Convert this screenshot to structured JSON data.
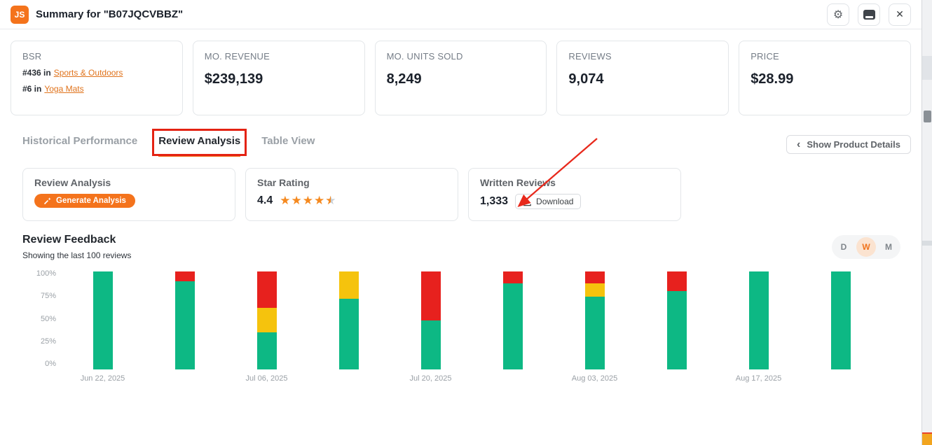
{
  "colors": {
    "brand_orange": "#f4731c",
    "annotation_red": "#e8291c",
    "bar_positive": "#0db884",
    "bar_neutral": "#f5c30d",
    "bar_negative": "#e7211e"
  },
  "header": {
    "logo_text": "JS",
    "title": "Summary for \"B07JQCVBBZ\""
  },
  "icons": {
    "settings": "⚙",
    "close": "✕",
    "chevron_left": "‹"
  },
  "stats": [
    {
      "label": "BSR",
      "lines": [
        {
          "prefix": "#436 in",
          "link": "Sports & Outdoors"
        },
        {
          "prefix": "#6 in",
          "link": "Yoga Mats"
        }
      ]
    },
    {
      "label": "MO. REVENUE",
      "value": "$239,139"
    },
    {
      "label": "MO. UNITS SOLD",
      "value": "8,249"
    },
    {
      "label": "REVIEWS",
      "value": "9,074"
    },
    {
      "label": "PRICE",
      "value": "$28.99"
    }
  ],
  "tabs": {
    "items": [
      {
        "label": "Historical Performance"
      },
      {
        "label": "Review Analysis"
      },
      {
        "label": "Table View"
      }
    ],
    "active_tab": "Review Analysis",
    "show_details_label": "Show Product Details"
  },
  "review_analysis_card": {
    "title": "Review Analysis",
    "generate_button_label": "Generate Analysis"
  },
  "star_rating_card": {
    "title": "Star Rating",
    "value": "4.4",
    "stars": 4.5
  },
  "written_reviews_card": {
    "title": "Written Reviews",
    "count": "1,333",
    "download_label": "Download"
  },
  "feedback": {
    "title": "Review Feedback",
    "subtitle": "Showing the last 100 reviews",
    "period_options": [
      "D",
      "W",
      "M"
    ],
    "active_period": "W"
  },
  "chart_data": {
    "type": "bar",
    "stacked": true,
    "bar_count": 10,
    "ylim": [
      0,
      100
    ],
    "y_tick_labels": [
      "100%",
      "75%",
      "50%",
      "25%",
      "0%"
    ],
    "x_tick_labels": [
      "Jun 22, 2025",
      "Jul 06, 2025",
      "Jul 20, 2025",
      "Aug 03, 2025",
      "Aug 17, 2025"
    ],
    "x_tick_bar_indexes": [
      0,
      2,
      4,
      6,
      8
    ],
    "series": [
      {
        "name": "positive",
        "color": "#0db884",
        "values": [
          100,
          90,
          38,
          72,
          50,
          88,
          74,
          80,
          100,
          100
        ]
      },
      {
        "name": "neutral",
        "color": "#f5c30d",
        "values": [
          0,
          0,
          25,
          28,
          0,
          0,
          14,
          0,
          0,
          0
        ]
      },
      {
        "name": "negative",
        "color": "#e7211e",
        "values": [
          0,
          10,
          37,
          0,
          50,
          12,
          12,
          20,
          0,
          0
        ]
      }
    ]
  }
}
